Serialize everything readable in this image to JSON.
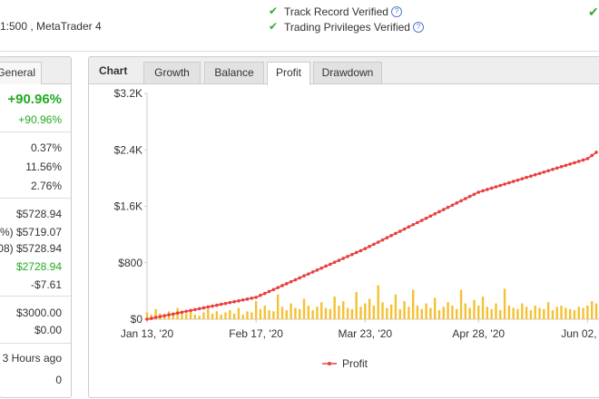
{
  "header": {
    "account": "1:500 , MetaTrader 4",
    "verifications": [
      "Track Record Verified",
      "Trading Privileges Verified"
    ]
  },
  "left_panel": {
    "tab": "General",
    "gain": "+90.96%",
    "rows": [
      "+90.96%",
      "0.37%",
      "11.56%",
      "2.76%",
      "$5728.94",
      "%) $5719.07",
      "08) $5728.94",
      "$2728.94",
      "-$7.61",
      "$3000.00",
      "$0.00",
      "3 Hours ago",
      "0"
    ]
  },
  "chart_tabs": {
    "label": "Chart",
    "tabs": [
      "Growth",
      "Balance",
      "Profit",
      "Drawdown"
    ],
    "active": "Profit"
  },
  "chart_data": {
    "type": "line",
    "grid": false,
    "legend": "bottom",
    "categories": [
      "Jan 13, '20",
      null,
      null,
      null,
      null,
      null,
      null,
      null,
      null,
      null,
      null,
      null,
      null,
      null,
      null,
      null,
      null,
      null,
      null,
      null,
      null,
      null,
      null,
      null,
      null,
      "Feb 17, '20",
      null,
      null,
      null,
      null,
      null,
      null,
      null,
      null,
      null,
      null,
      null,
      null,
      null,
      null,
      null,
      null,
      null,
      null,
      null,
      null,
      null,
      null,
      null,
      null,
      "Mar 23, '20",
      null,
      null,
      null,
      null,
      null,
      null,
      null,
      null,
      null,
      null,
      null,
      null,
      null,
      null,
      null,
      null,
      null,
      null,
      null,
      null,
      null,
      null,
      null,
      null,
      null,
      "Apr 28, '20",
      null,
      null,
      null,
      null,
      null,
      null,
      null,
      null,
      null,
      null,
      null,
      null,
      null,
      null,
      null,
      null,
      null,
      null,
      null,
      null,
      null,
      null,
      null,
      null,
      "Jun 02, '20",
      null,
      null
    ],
    "ylim": [
      0,
      3200
    ],
    "yticks": [
      {
        "value": 0,
        "label": "$0"
      },
      {
        "value": 800,
        "label": "$800"
      },
      {
        "value": 1600,
        "label": "$1.6K"
      },
      {
        "value": 2400,
        "label": "$2.4K"
      },
      {
        "value": 3200,
        "label": "$3.2K"
      }
    ],
    "y2lim": [
      0,
      1000
    ],
    "series": [
      {
        "name": "Profit",
        "color": "#e8403f",
        "values": [
          0,
          12,
          25,
          37,
          50,
          62,
          74,
          87,
          99,
          112,
          124,
          136,
          149,
          161,
          174,
          186,
          198,
          211,
          223,
          236,
          248,
          260,
          273,
          285,
          298,
          310,
          338,
          365,
          393,
          420,
          448,
          476,
          503,
          531,
          558,
          586,
          614,
          641,
          669,
          696,
          724,
          752,
          779,
          807,
          834,
          862,
          890,
          917,
          945,
          972,
          1000,
          1031,
          1062,
          1092,
          1123,
          1154,
          1185,
          1216,
          1246,
          1277,
          1308,
          1339,
          1370,
          1400,
          1431,
          1462,
          1493,
          1524,
          1554,
          1585,
          1616,
          1647,
          1678,
          1708,
          1739,
          1770,
          1800,
          1819,
          1838,
          1857,
          1876,
          1895,
          1914,
          1933,
          1952,
          1971,
          1990,
          2009,
          2028,
          2047,
          2066,
          2085,
          2104,
          2123,
          2142,
          2161,
          2180,
          2199,
          2218,
          2237,
          2256,
          2275,
          2320,
          2365
        ]
      },
      {
        "type": "bar",
        "axis": "y2",
        "color": "#f5c032",
        "values": [
          30,
          20,
          45,
          25,
          15,
          35,
          20,
          50,
          30,
          25,
          40,
          20,
          15,
          30,
          45,
          25,
          35,
          20,
          30,
          40,
          25,
          50,
          20,
          35,
          30,
          80,
          45,
          60,
          40,
          35,
          110,
          55,
          40,
          70,
          50,
          45,
          90,
          60,
          40,
          55,
          75,
          50,
          45,
          100,
          60,
          80,
          50,
          45,
          120,
          55,
          70,
          90,
          60,
          150,
          75,
          50,
          65,
          110,
          45,
          80,
          55,
          130,
          60,
          45,
          70,
          50,
          95,
          40,
          55,
          75,
          60,
          45,
          130,
          70,
          50,
          85,
          60,
          100,
          55,
          45,
          70,
          40,
          135,
          60,
          50,
          45,
          70,
          55,
          40,
          60,
          50,
          45,
          75,
          40,
          55,
          60,
          50,
          45,
          40,
          55,
          50,
          60,
          80,
          70
        ]
      }
    ]
  }
}
